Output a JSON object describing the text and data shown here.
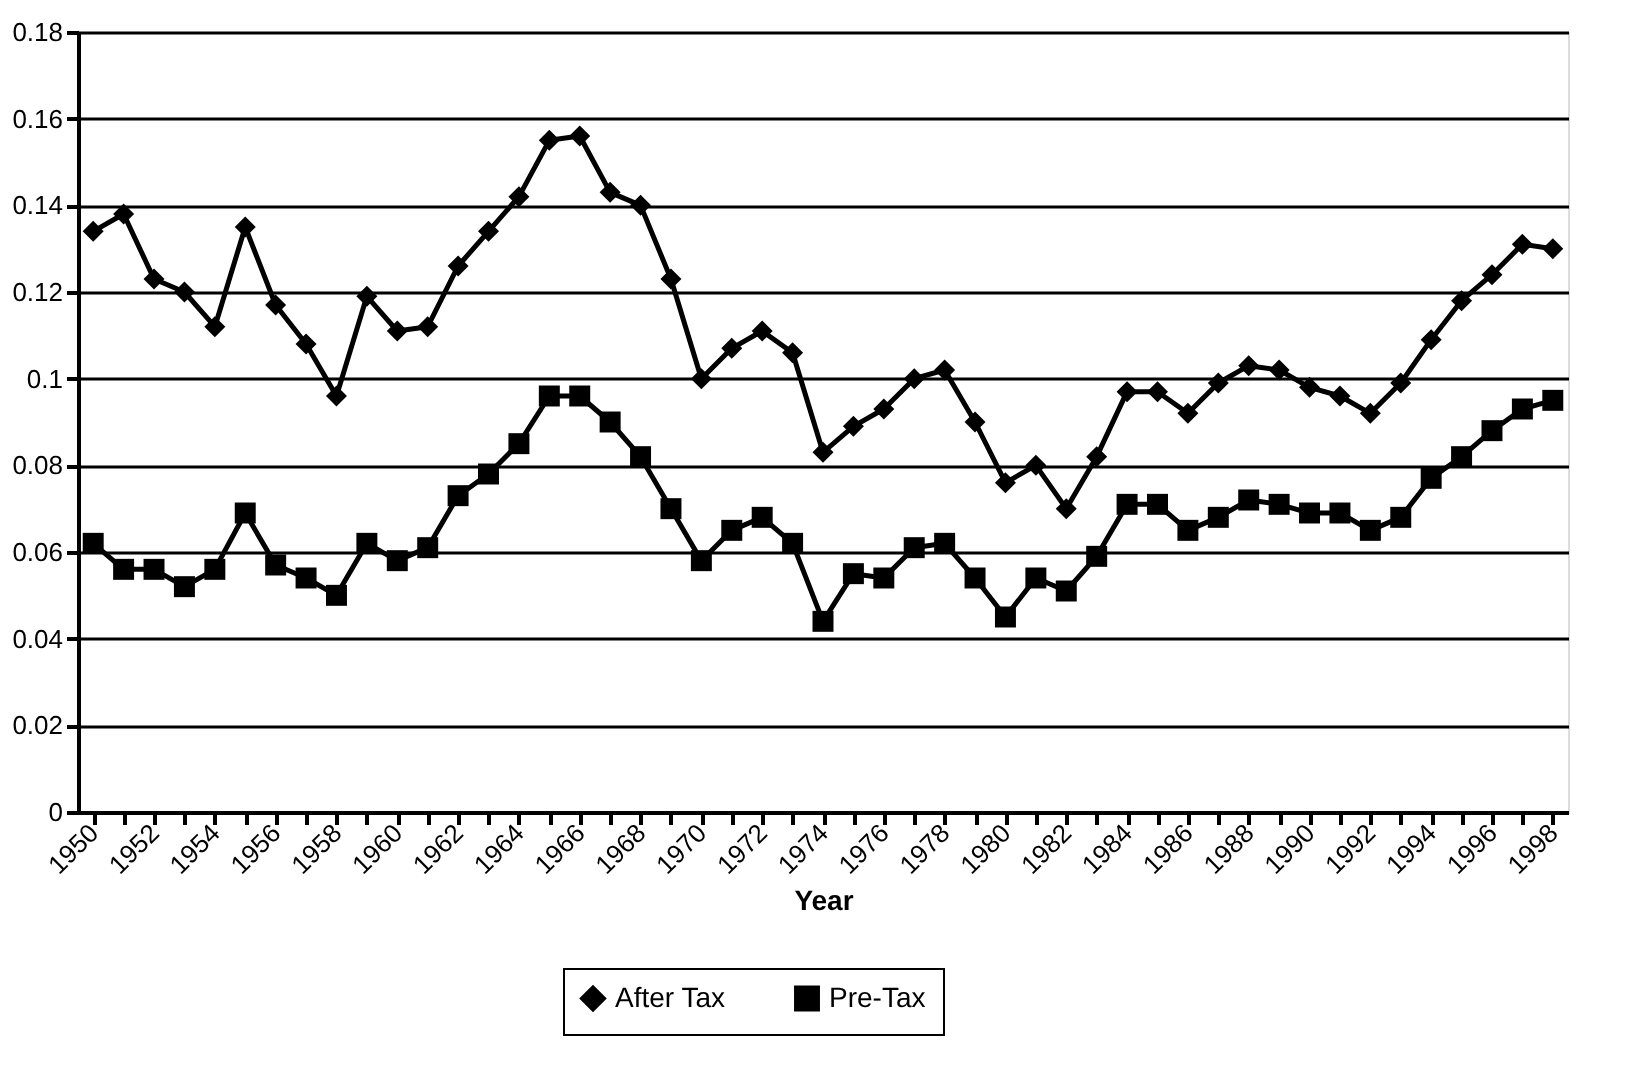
{
  "chart_data": {
    "type": "line",
    "xlabel": "Year",
    "categories": [
      "1950",
      null,
      "1952",
      null,
      "1954",
      null,
      "1956",
      null,
      "1958",
      null,
      "1960",
      null,
      "1962",
      null,
      "1964",
      null,
      "1966",
      null,
      "1968",
      null,
      "1970",
      null,
      "1972",
      null,
      "1974",
      null,
      "1976",
      null,
      "1978",
      null,
      "1980",
      null,
      "1982",
      null,
      "1984",
      null,
      "1986",
      null,
      "1988",
      null,
      "1990",
      null,
      "1992",
      null,
      "1994",
      null,
      "1996",
      null,
      "1998"
    ],
    "series": [
      {
        "name": "After Tax",
        "color": "#000000",
        "marker": "diamond",
        "values": [
          0.134,
          0.138,
          0.123,
          0.12,
          0.112,
          0.135,
          0.117,
          0.108,
          0.096,
          0.119,
          0.111,
          0.112,
          0.126,
          0.134,
          0.142,
          0.155,
          0.156,
          0.143,
          0.14,
          0.123,
          0.1,
          0.107,
          0.111,
          0.106,
          0.083,
          0.089,
          0.093,
          0.1,
          0.102,
          0.09,
          0.076,
          0.08,
          0.07,
          0.082,
          0.097,
          0.097,
          0.092,
          0.099,
          0.103,
          0.102,
          0.098,
          0.096,
          0.092,
          0.099,
          0.109,
          0.118,
          0.124,
          0.131,
          0.13
        ]
      },
      {
        "name": "Pre-Tax",
        "color": "#000000",
        "marker": "square",
        "values": [
          0.062,
          0.056,
          0.056,
          0.052,
          0.056,
          0.069,
          0.057,
          0.054,
          0.05,
          0.062,
          0.058,
          0.061,
          0.073,
          0.078,
          0.085,
          0.096,
          0.096,
          0.09,
          0.082,
          0.07,
          0.058,
          0.065,
          0.068,
          0.062,
          0.044,
          0.055,
          0.054,
          0.061,
          0.062,
          0.054,
          0.045,
          0.054,
          0.051,
          0.059,
          0.071,
          0.071,
          0.065,
          0.068,
          0.072,
          0.071,
          0.069,
          0.069,
          0.065,
          0.068,
          0.077,
          0.082,
          0.088,
          0.093,
          0.095
        ]
      }
    ],
    "ylim": [
      0,
      0.18
    ],
    "yticks": [
      0,
      0.02,
      0.04,
      0.06,
      0.08,
      0.1,
      0.12,
      0.14,
      0.16,
      0.18
    ],
    "grid": "y",
    "legend": "bottom",
    "line_style": "solid"
  }
}
